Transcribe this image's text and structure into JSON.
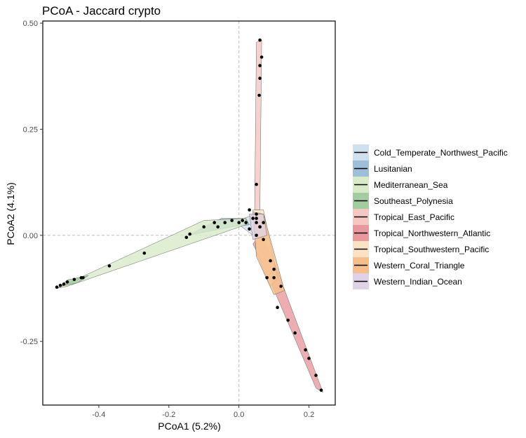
{
  "chart_data": {
    "type": "scatter",
    "title": "PCoA - Jaccard crypto",
    "xlabel": "PCoA1 (5.2%)",
    "ylabel": "PCoA2 (4.1%)",
    "xlim": [
      -0.56,
      0.275
    ],
    "ylim": [
      -0.4,
      0.505
    ],
    "xticks": [
      -0.4,
      -0.2,
      0.0,
      0.2
    ],
    "xtick_labels": [
      "-0.4",
      "-0.2",
      "0.0",
      "0.2"
    ],
    "yticks": [
      0.5,
      0.25,
      0.0,
      -0.25
    ],
    "ytick_labels": [
      "0.50",
      "0.25",
      "0.00",
      "-0.25"
    ],
    "grid": false,
    "reference_lines": {
      "x": 0,
      "y": 0,
      "style": "dashed"
    },
    "legend_position": "right",
    "series": [
      {
        "name": "Cold_Temperate_Northwest_Pacific",
        "color": "#cfe1ee",
        "hull": [
          [
            0.0,
            0.035
          ],
          [
            0.06,
            0.055
          ],
          [
            0.07,
            0.02
          ],
          [
            0.04,
            0.0
          ],
          [
            0.0,
            0.025
          ]
        ],
        "points": [
          [
            0.02,
            0.03
          ],
          [
            0.05,
            0.04
          ],
          [
            0.06,
            0.02
          ],
          [
            0.03,
            0.015
          ]
        ]
      },
      {
        "name": "Lusitanian",
        "color": "#9dbfd9",
        "hull": [
          [
            -0.145,
            0.0
          ],
          [
            -0.05,
            0.04
          ],
          [
            0.02,
            0.04
          ],
          [
            0.03,
            0.025
          ],
          [
            -0.02,
            0.02
          ]
        ],
        "points": [
          [
            -0.14,
            0.003
          ],
          [
            -0.1,
            0.02
          ],
          [
            -0.07,
            0.03
          ],
          [
            -0.04,
            0.03
          ],
          [
            -0.02,
            0.035
          ],
          [
            0.01,
            0.035
          ]
        ]
      },
      {
        "name": "Mediterranean_Sea",
        "color": "#d8eac8",
        "hull": [
          [
            -0.52,
            -0.125
          ],
          [
            -0.1,
            0.035
          ],
          [
            0.02,
            0.04
          ],
          [
            0.02,
            0.025
          ],
          [
            -0.49,
            -0.12
          ]
        ],
        "points": [
          [
            -0.52,
            -0.122
          ],
          [
            -0.5,
            -0.115
          ],
          [
            -0.45,
            -0.1
          ],
          [
            -0.37,
            -0.072
          ],
          [
            -0.27,
            -0.042
          ],
          [
            -0.15,
            -0.005
          ],
          [
            -0.06,
            0.02
          ],
          [
            0.0,
            0.03
          ]
        ]
      },
      {
        "name": "Southeast_Polynesia",
        "color": "#a3cc9f",
        "hull": [
          [
            -0.51,
            -0.12
          ],
          [
            -0.49,
            -0.105
          ],
          [
            -0.43,
            -0.095
          ],
          [
            -0.46,
            -0.112
          ]
        ],
        "points": [
          [
            -0.51,
            -0.118
          ],
          [
            -0.49,
            -0.11
          ],
          [
            -0.47,
            -0.104
          ],
          [
            -0.445,
            -0.1
          ]
        ]
      },
      {
        "name": "Tropical_East_Pacific",
        "color": "#f4c7c3",
        "hull": [
          [
            0.05,
            0.455
          ],
          [
            0.065,
            0.46
          ],
          [
            0.06,
            0.06
          ],
          [
            0.045,
            0.06
          ]
        ],
        "points": [
          [
            0.06,
            0.46
          ],
          [
            0.065,
            0.42
          ],
          [
            0.06,
            0.4
          ],
          [
            0.06,
            0.37
          ],
          [
            0.058,
            0.33
          ],
          [
            0.05,
            0.12
          ],
          [
            0.03,
            0.06
          ]
        ]
      },
      {
        "name": "Tropical_Northwestern_Atlantic",
        "color": "#e8999e",
        "hull": [
          [
            0.06,
            0.0
          ],
          [
            0.09,
            -0.04
          ],
          [
            0.24,
            -0.37
          ],
          [
            0.22,
            -0.36
          ],
          [
            0.07,
            -0.07
          ],
          [
            0.04,
            -0.02
          ]
        ],
        "points": [
          [
            0.08,
            -0.1
          ],
          [
            0.11,
            -0.17
          ],
          [
            0.14,
            -0.2
          ],
          [
            0.16,
            -0.23
          ],
          [
            0.19,
            -0.27
          ],
          [
            0.2,
            -0.29
          ],
          [
            0.22,
            -0.33
          ],
          [
            0.235,
            -0.365
          ]
        ]
      },
      {
        "name": "Tropical_Southwestern_Pacific",
        "color": "#fae2c2",
        "hull": [
          [
            0.04,
            0.06
          ],
          [
            0.07,
            0.06
          ],
          [
            0.11,
            -0.1
          ],
          [
            0.09,
            -0.12
          ],
          [
            0.05,
            -0.04
          ]
        ],
        "points": [
          [
            0.05,
            0.05
          ],
          [
            0.07,
            0.03
          ],
          [
            0.09,
            -0.06
          ],
          [
            0.1,
            -0.1
          ]
        ]
      },
      {
        "name": "Western_Coral_Triangle",
        "color": "#f6be8a",
        "hull": [
          [
            0.04,
            0.055
          ],
          [
            0.07,
            0.05
          ],
          [
            0.13,
            -0.13
          ],
          [
            0.1,
            -0.14
          ],
          [
            0.05,
            -0.05
          ]
        ],
        "points": [
          [
            0.05,
            0.03
          ],
          [
            0.07,
            -0.01
          ],
          [
            0.1,
            -0.08
          ],
          [
            0.12,
            -0.12
          ]
        ]
      },
      {
        "name": "Western_Indian_Ocean",
        "color": "#e0d2e6",
        "hull": [
          [
            0.03,
            0.05
          ],
          [
            0.07,
            0.05
          ],
          [
            0.08,
            0.0
          ],
          [
            0.04,
            -0.01
          ]
        ],
        "points": [
          [
            0.04,
            0.04
          ],
          [
            0.06,
            0.02
          ],
          [
            0.05,
            0.0
          ]
        ]
      }
    ]
  }
}
